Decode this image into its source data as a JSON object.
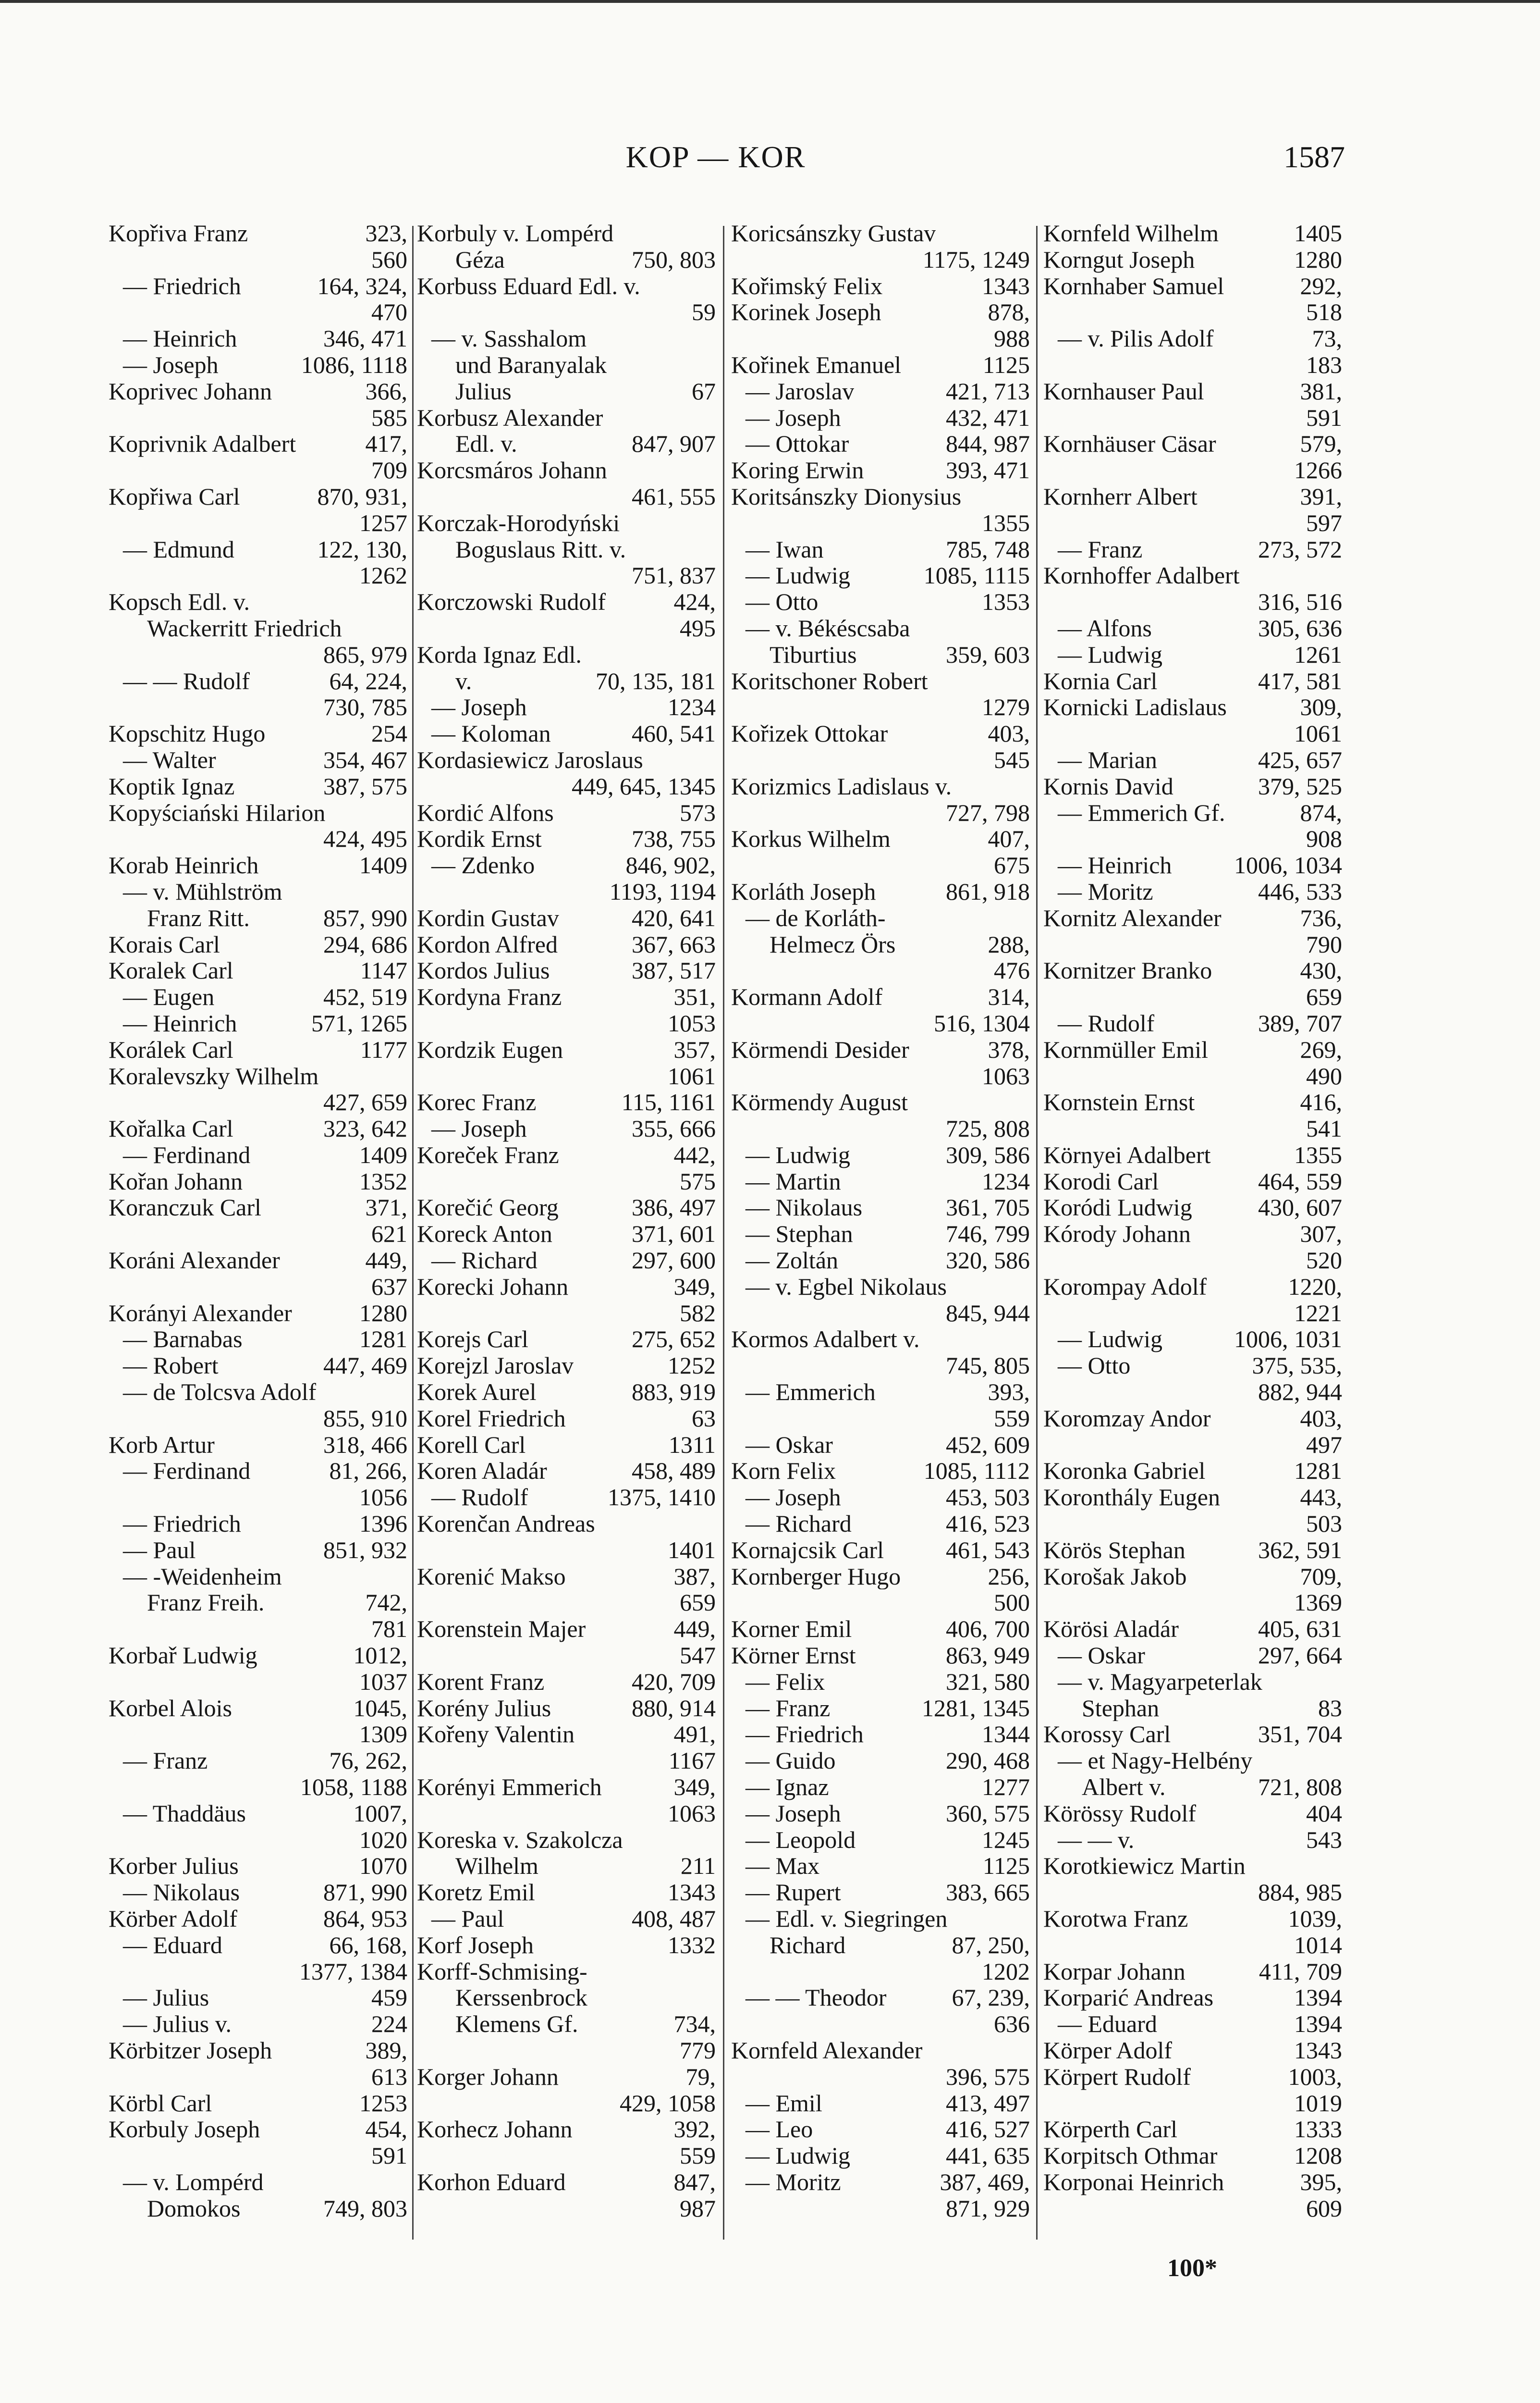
{
  "header": {
    "running_head": "KOP — KOR",
    "page_number": "1587"
  },
  "footer": {
    "signature": "100*"
  },
  "columns": [
    [
      [
        "Kopřiva Franz",
        "323,"
      ],
      [
        "",
        "560"
      ],
      [
        "— Friedrich",
        "164, 324,"
      ],
      [
        "",
        "470"
      ],
      [
        "— Heinrich",
        "346, 471"
      ],
      [
        "— Joseph",
        "1086, 1118"
      ],
      [
        "Koprivec Johann",
        "366,"
      ],
      [
        "",
        "585"
      ],
      [
        "Koprivnik Adalbert",
        "417,"
      ],
      [
        "",
        "709"
      ],
      [
        "Kopřiwa Carl",
        "870, 931,"
      ],
      [
        "",
        "1257"
      ],
      [
        "— Edmund",
        "122, 130,"
      ],
      [
        "",
        "1262"
      ],
      [
        "Kopsch Edl. v.",
        ""
      ],
      [
        "  Wackerritt Friedrich",
        ""
      ],
      [
        "",
        "865, 979"
      ],
      [
        "— — Rudolf",
        "64, 224,"
      ],
      [
        "",
        "730, 785"
      ],
      [
        "Kopschitz Hugo",
        "254"
      ],
      [
        "— Walter",
        "354, 467"
      ],
      [
        "Koptik Ignaz",
        "387, 575"
      ],
      [
        "Kopyściański Hilarion",
        ""
      ],
      [
        "",
        "424, 495"
      ],
      [
        "Korab Heinrich",
        "1409"
      ],
      [
        "— v. Mühlström",
        ""
      ],
      [
        "  Franz Ritt.",
        "857, 990"
      ],
      [
        "Korais Carl",
        "294, 686"
      ],
      [
        "Koralek Carl",
        "1147"
      ],
      [
        "— Eugen",
        "452, 519"
      ],
      [
        "— Heinrich",
        "571, 1265"
      ],
      [
        "Korálek Carl",
        "1177"
      ],
      [
        "Koralevszky Wilhelm",
        ""
      ],
      [
        "",
        "427, 659"
      ],
      [
        "Kořalka Carl",
        "323, 642"
      ],
      [
        "— Ferdinand",
        "1409"
      ],
      [
        "Kořan Johann",
        "1352"
      ],
      [
        "Koranczuk Carl",
        "371,"
      ],
      [
        "",
        "621"
      ],
      [
        "Koráni Alexander",
        "449,"
      ],
      [
        "",
        "637"
      ],
      [
        "Korányi Alexander",
        "1280"
      ],
      [
        "— Barnabas",
        "1281"
      ],
      [
        "— Robert",
        "447, 469"
      ],
      [
        "— de Tolcsva Adolf",
        ""
      ],
      [
        "",
        "855, 910"
      ],
      [
        "Korb Artur",
        "318, 466"
      ],
      [
        "— Ferdinand",
        "81, 266,"
      ],
      [
        "",
        "1056"
      ],
      [
        "— Friedrich",
        "1396"
      ],
      [
        "— Paul",
        "851, 932"
      ],
      [
        "— -Weidenheim",
        ""
      ],
      [
        "  Franz Freih.",
        "742,"
      ],
      [
        "",
        "781"
      ],
      [
        "Korbař Ludwig",
        "1012,"
      ],
      [
        "",
        "1037"
      ],
      [
        "Korbel Alois",
        "1045,"
      ],
      [
        "",
        "1309"
      ],
      [
        "— Franz",
        "76, 262,"
      ],
      [
        "",
        "1058, 1188"
      ],
      [
        "— Thaddäus",
        "1007,"
      ],
      [
        "",
        "1020"
      ],
      [
        "Korber Julius",
        "1070"
      ],
      [
        "— Nikolaus",
        "871, 990"
      ],
      [
        "Körber Adolf",
        "864, 953"
      ],
      [
        "— Eduard",
        "66, 168,"
      ],
      [
        "",
        "1377, 1384"
      ],
      [
        "— Julius",
        "459"
      ],
      [
        "— Julius v.",
        "224"
      ],
      [
        "Körbitzer Joseph",
        "389,"
      ],
      [
        "",
        "613"
      ],
      [
        "Körbl Carl",
        "1253"
      ],
      [
        "Korbuly Joseph",
        "454,"
      ],
      [
        "",
        "591"
      ],
      [
        "— v. Lompérd",
        ""
      ],
      [
        "  Domokos",
        "749, 803"
      ]
    ],
    [
      [
        "Korbuly v. Lompérd",
        ""
      ],
      [
        "  Géza",
        "750, 803"
      ],
      [
        "Korbuss Eduard Edl. v.",
        ""
      ],
      [
        "",
        "59"
      ],
      [
        "— v. Sasshalom",
        ""
      ],
      [
        "  und Baranyalak",
        ""
      ],
      [
        "  Julius",
        "67"
      ],
      [
        "Korbusz Alexander",
        ""
      ],
      [
        "  Edl. v.",
        "847, 907"
      ],
      [
        "Korcsmáros Johann",
        ""
      ],
      [
        "",
        "461, 555"
      ],
      [
        "Korczak-Horodyński",
        ""
      ],
      [
        "  Boguslaus Ritt. v.",
        ""
      ],
      [
        "",
        "751, 837"
      ],
      [
        "Korczowski Rudolf",
        "424,"
      ],
      [
        "",
        "495"
      ],
      [
        "Korda Ignaz Edl.",
        ""
      ],
      [
        "  v.",
        "70, 135, 181"
      ],
      [
        "— Joseph",
        "1234"
      ],
      [
        "— Koloman",
        "460, 541"
      ],
      [
        "Kordasiewicz Jaroslaus",
        ""
      ],
      [
        "",
        "449, 645, 1345"
      ],
      [
        "Kordić Alfons",
        "573"
      ],
      [
        "Kordik Ernst",
        "738, 755"
      ],
      [
        "— Zdenko",
        "846, 902,"
      ],
      [
        "",
        "1193, 1194"
      ],
      [
        "Kordin Gustav",
        "420, 641"
      ],
      [
        "Kordon Alfred",
        "367, 663"
      ],
      [
        "Kordos Julius",
        "387, 517"
      ],
      [
        "Kordyna Franz",
        "351,"
      ],
      [
        "",
        "1053"
      ],
      [
        "Kordzik Eugen",
        "357,"
      ],
      [
        "",
        "1061"
      ],
      [
        "Korec Franz",
        "115, 1161"
      ],
      [
        "— Joseph",
        "355, 666"
      ],
      [
        "Koreček Franz",
        "442,"
      ],
      [
        "",
        "575"
      ],
      [
        "Korečić Georg",
        "386, 497"
      ],
      [
        "Koreck Anton",
        "371, 601"
      ],
      [
        "— Richard",
        "297, 600"
      ],
      [
        "Korecki Johann",
        "349,"
      ],
      [
        "",
        "582"
      ],
      [
        "Korejs Carl",
        "275, 652"
      ],
      [
        "Korejzl Jaroslav",
        "1252"
      ],
      [
        "Korek Aurel",
        "883, 919"
      ],
      [
        "Korel Friedrich",
        "63"
      ],
      [
        "Korell Carl",
        "1311"
      ],
      [
        "Koren Aladár",
        "458, 489"
      ],
      [
        "— Rudolf",
        "1375, 1410"
      ],
      [
        "Korenčan Andreas",
        ""
      ],
      [
        "",
        "1401"
      ],
      [
        "Korenić Makso",
        "387,"
      ],
      [
        "",
        "659"
      ],
      [
        "Korenstein Majer",
        "449,"
      ],
      [
        "",
        "547"
      ],
      [
        "Korent Franz",
        "420, 709"
      ],
      [
        "Korény Julius",
        "880, 914"
      ],
      [
        "Kořeny Valentin",
        "491,"
      ],
      [
        "",
        "1167"
      ],
      [
        "Korényi Emmerich",
        "349,"
      ],
      [
        "",
        "1063"
      ],
      [
        "Koreska v. Szakolcza",
        ""
      ],
      [
        "  Wilhelm",
        "211"
      ],
      [
        "Koretz Emil",
        "1343"
      ],
      [
        "— Paul",
        "408, 487"
      ],
      [
        "Korf Joseph",
        "1332"
      ],
      [
        "Korff-Schmising-",
        ""
      ],
      [
        "  Kerssenbrock",
        ""
      ],
      [
        "  Klemens Gf.",
        "734,"
      ],
      [
        "",
        "779"
      ],
      [
        "Korger Johann",
        "79,"
      ],
      [
        "",
        "429, 1058"
      ],
      [
        "Korhecz Johann",
        "392,"
      ],
      [
        "",
        "559"
      ],
      [
        "Korhon Eduard",
        "847,"
      ],
      [
        "",
        "987"
      ]
    ],
    [
      [
        "Koricsánszky Gustav",
        ""
      ],
      [
        "",
        "1175, 1249"
      ],
      [
        "Kořimský Felix",
        "1343"
      ],
      [
        "Korinek Joseph",
        "878,"
      ],
      [
        "",
        "988"
      ],
      [
        "Kořinek Emanuel",
        "1125"
      ],
      [
        "— Jaroslav",
        "421, 713"
      ],
      [
        "— Joseph",
        "432, 471"
      ],
      [
        "— Ottokar",
        "844, 987"
      ],
      [
        "Koring Erwin",
        "393, 471"
      ],
      [
        "Koritsánszky Dionysius",
        ""
      ],
      [
        "",
        "1355"
      ],
      [
        "— Iwan",
        "785, 748"
      ],
      [
        "— Ludwig",
        "1085, 1115"
      ],
      [
        "— Otto",
        "1353"
      ],
      [
        "— v. Békéscsaba",
        ""
      ],
      [
        "  Tiburtius",
        "359, 603"
      ],
      [
        "Koritschoner Robert",
        ""
      ],
      [
        "",
        "1279"
      ],
      [
        "Kořizek Ottokar",
        "403,"
      ],
      [
        "",
        "545"
      ],
      [
        "Korizmics Ladislaus v.",
        ""
      ],
      [
        "",
        "727, 798"
      ],
      [
        "Korkus Wilhelm",
        "407,"
      ],
      [
        "",
        "675"
      ],
      [
        "Korláth Joseph",
        "861, 918"
      ],
      [
        "— de Korláth-",
        ""
      ],
      [
        "  Helmecz Örs",
        "288,"
      ],
      [
        "",
        "476"
      ],
      [
        "Kormann Adolf",
        "314,"
      ],
      [
        "",
        "516, 1304"
      ],
      [
        "Körmendi Desider",
        "378,"
      ],
      [
        "",
        "1063"
      ],
      [
        "Körmendy August",
        ""
      ],
      [
        "",
        "725, 808"
      ],
      [
        "— Ludwig",
        "309, 586"
      ],
      [
        "— Martin",
        "1234"
      ],
      [
        "— Nikolaus",
        "361, 705"
      ],
      [
        "— Stephan",
        "746, 799"
      ],
      [
        "— Zoltán",
        "320, 586"
      ],
      [
        "— v. Egbel Nikolaus",
        ""
      ],
      [
        "",
        "845, 944"
      ],
      [
        "Kormos Adalbert v.",
        ""
      ],
      [
        "",
        "745, 805"
      ],
      [
        "— Emmerich",
        "393,"
      ],
      [
        "",
        "559"
      ],
      [
        "— Oskar",
        "452, 609"
      ],
      [
        "Korn Felix",
        "1085, 1112"
      ],
      [
        "— Joseph",
        "453, 503"
      ],
      [
        "— Richard",
        "416, 523"
      ],
      [
        "Kornajcsik Carl",
        "461, 543"
      ],
      [
        "Kornberger Hugo",
        "256,"
      ],
      [
        "",
        "500"
      ],
      [
        "Korner Emil",
        "406, 700"
      ],
      [
        "Körner Ernst",
        "863, 949"
      ],
      [
        "— Felix",
        "321, 580"
      ],
      [
        "— Franz",
        "1281, 1345"
      ],
      [
        "— Friedrich",
        "1344"
      ],
      [
        "— Guido",
        "290, 468"
      ],
      [
        "— Ignaz",
        "1277"
      ],
      [
        "— Joseph",
        "360, 575"
      ],
      [
        "— Leopold",
        "1245"
      ],
      [
        "— Max",
        "1125"
      ],
      [
        "— Rupert",
        "383, 665"
      ],
      [
        "— Edl. v. Siegringen",
        ""
      ],
      [
        "  Richard",
        "87, 250,"
      ],
      [
        "",
        "1202"
      ],
      [
        "— — Theodor",
        "67, 239,"
      ],
      [
        "",
        "636"
      ],
      [
        "Kornfeld Alexander",
        ""
      ],
      [
        "",
        "396, 575"
      ],
      [
        "— Emil",
        "413, 497"
      ],
      [
        "— Leo",
        "416, 527"
      ],
      [
        "— Ludwig",
        "441, 635"
      ],
      [
        "— Moritz",
        "387, 469,"
      ],
      [
        "",
        "871, 929"
      ]
    ],
    [
      [
        "Kornfeld Wilhelm",
        "1405"
      ],
      [
        "Korngut Joseph",
        "1280"
      ],
      [
        "Kornhaber Samuel",
        "292,"
      ],
      [
        "",
        "518"
      ],
      [
        "— v. Pilis Adolf",
        "73,"
      ],
      [
        "",
        "183"
      ],
      [
        "Kornhauser Paul",
        "381,"
      ],
      [
        "",
        "591"
      ],
      [
        "Kornhäuser Cäsar",
        "579,"
      ],
      [
        "",
        "1266"
      ],
      [
        "Kornherr Albert",
        "391,"
      ],
      [
        "",
        "597"
      ],
      [
        "— Franz",
        "273, 572"
      ],
      [
        "Kornhoffer Adalbert",
        ""
      ],
      [
        "",
        "316, 516"
      ],
      [
        "— Alfons",
        "305, 636"
      ],
      [
        "— Ludwig",
        "1261"
      ],
      [
        "Kornia Carl",
        "417, 581"
      ],
      [
        "Kornicki Ladislaus",
        "309,"
      ],
      [
        "",
        "1061"
      ],
      [
        "— Marian",
        "425, 657"
      ],
      [
        "Kornis David",
        "379, 525"
      ],
      [
        "— Emmerich Gf.",
        "874,"
      ],
      [
        "",
        "908"
      ],
      [
        "— Heinrich",
        "1006, 1034"
      ],
      [
        "— Moritz",
        "446, 533"
      ],
      [
        "Kornitz Alexander",
        "736,"
      ],
      [
        "",
        "790"
      ],
      [
        "Kornitzer Branko",
        "430,"
      ],
      [
        "",
        "659"
      ],
      [
        "— Rudolf",
        "389, 707"
      ],
      [
        "Kornmüller Emil",
        "269,"
      ],
      [
        "",
        "490"
      ],
      [
        "Kornstein Ernst",
        "416,"
      ],
      [
        "",
        "541"
      ],
      [
        "Környei Adalbert",
        "1355"
      ],
      [
        "Korodi Carl",
        "464, 559"
      ],
      [
        "Koródi Ludwig",
        "430, 607"
      ],
      [
        "Kórody Johann",
        "307,"
      ],
      [
        "",
        "520"
      ],
      [
        "Korompay Adolf",
        "1220,"
      ],
      [
        "",
        "1221"
      ],
      [
        "— Ludwig",
        "1006, 1031"
      ],
      [
        "— Otto",
        "375, 535,"
      ],
      [
        "",
        "882, 944"
      ],
      [
        "Koromzay Andor",
        "403,"
      ],
      [
        "",
        "497"
      ],
      [
        "Koronka Gabriel",
        "1281"
      ],
      [
        "Koronthály Eugen",
        "443,"
      ],
      [
        "",
        "503"
      ],
      [
        "Körös Stephan",
        "362, 591"
      ],
      [
        "Korošak Jakob",
        "709,"
      ],
      [
        "",
        "1369"
      ],
      [
        "Körösi Aladár",
        "405, 631"
      ],
      [
        "— Oskar",
        "297, 664"
      ],
      [
        "— v. Magyarpeterlak",
        ""
      ],
      [
        "  Stephan",
        "83"
      ],
      [
        "Korossy Carl",
        "351, 704"
      ],
      [
        "— et Nagy-Helbény",
        ""
      ],
      [
        "  Albert v.",
        "721, 808"
      ],
      [
        "Körössy Rudolf",
        "404"
      ],
      [
        "— — v.",
        "543"
      ],
      [
        "Korotkiewicz Martin",
        ""
      ],
      [
        "",
        "884, 985"
      ],
      [
        "Korotwa Franz",
        "1039,"
      ],
      [
        "",
        "1014"
      ],
      [
        "Korpar Johann",
        "411, 709"
      ],
      [
        "Korparić Andreas",
        "1394"
      ],
      [
        "— Eduard",
        "1394"
      ],
      [
        "Körper Adolf",
        "1343"
      ],
      [
        "Körpert Rudolf",
        "1003,"
      ],
      [
        "",
        "1019"
      ],
      [
        "Körperth Carl",
        "1333"
      ],
      [
        "Korpitsch Othmar",
        "1208"
      ],
      [
        "Korponai Heinrich",
        "395,"
      ],
      [
        "",
        "609"
      ]
    ]
  ]
}
